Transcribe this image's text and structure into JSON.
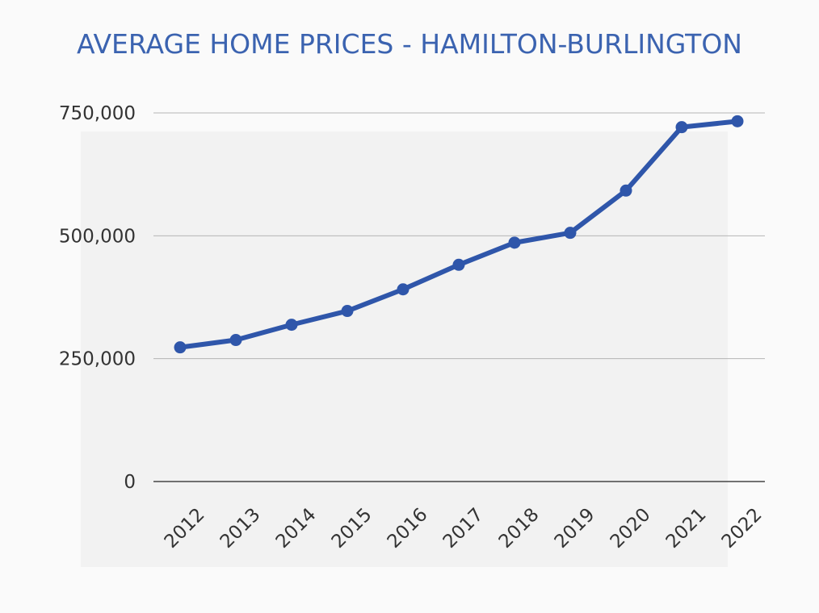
{
  "chart_data": {
    "type": "line",
    "title": "AVERAGE HOME PRICES - HAMILTON-BURLINGTON",
    "xlabel": "",
    "ylabel": "",
    "categories": [
      "2012",
      "2013",
      "2014",
      "2015",
      "2016",
      "2017",
      "2018",
      "2019",
      "2020",
      "2021",
      "2022"
    ],
    "series": [
      {
        "values": [
          273000,
          288000,
          319000,
          347000,
          391000,
          441000,
          486000,
          506000,
          592000,
          721000,
          733000
        ]
      }
    ],
    "ylim": [
      0,
      750000
    ],
    "yticks": [
      0,
      250000,
      500000,
      750000
    ],
    "ytick_labels": [
      "0",
      "250,000",
      "500,000",
      "750,000"
    ],
    "grid": true,
    "legend": "none",
    "colors": {
      "title": "#3b63b0",
      "line": "#2f56aa",
      "grid": "#b5b5b5",
      "axis": "#444444",
      "text": "#333333",
      "plot_background": "#f2f2f2",
      "page_background": "#fafafa"
    }
  }
}
